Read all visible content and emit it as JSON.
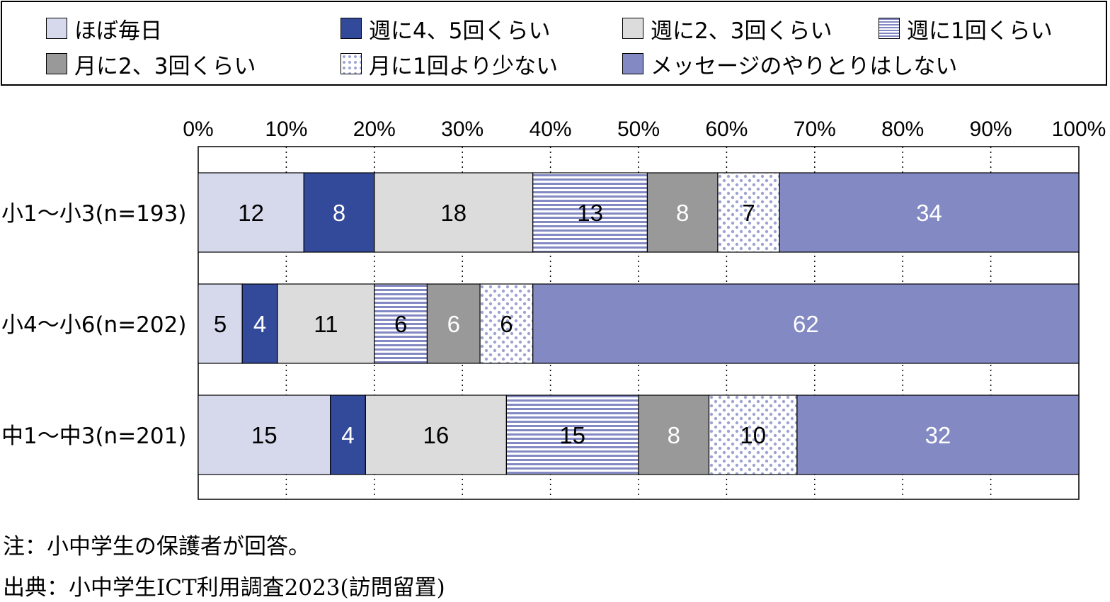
{
  "legend": [
    {
      "label": "ほぼ毎日",
      "fill": "#d6d8ec"
    },
    {
      "label": "週に4、5回くらい",
      "fill": "#33499a"
    },
    {
      "label": "週に2、3回くらい",
      "fill": "#dcdcdc"
    },
    {
      "label": "週に1回くらい",
      "fill": "stripes"
    },
    {
      "label": "月に2、3回くらい",
      "fill": "#999999"
    },
    {
      "label": "月に1回より少ない",
      "fill": "dots"
    },
    {
      "label": "メッセージのやりとりはしない",
      "fill": "#8389c2"
    }
  ],
  "colors": {
    "daily": "#d6d8ec",
    "weekly_4_5": "#33499a",
    "weekly_2_3": "#dcdcdc",
    "stripe_base": "#ffffff",
    "stripe_line": "#8389c2",
    "monthly_2_3": "#999999",
    "dot_base": "#ffffff",
    "dot": "#9da3d2",
    "none": "#8389c2"
  },
  "chart_data": {
    "type": "bar",
    "orientation": "horizontal",
    "stacked": true,
    "xlim": [
      0,
      100
    ],
    "x_ticks": [
      "0%",
      "10%",
      "20%",
      "30%",
      "40%",
      "50%",
      "60%",
      "70%",
      "80%",
      "90%",
      "100%"
    ],
    "grid": "vertical-dotted",
    "categories": [
      "小1～小3(n=193)",
      "小4～小6(n=202)",
      "中1～中3(n=201)"
    ],
    "series": [
      {
        "name": "ほぼ毎日",
        "values": [
          12,
          5,
          15
        ]
      },
      {
        "name": "週に4、5回くらい",
        "values": [
          8,
          4,
          4
        ]
      },
      {
        "name": "週に2、3回くらい",
        "values": [
          18,
          11,
          16
        ]
      },
      {
        "name": "週に1回くらい",
        "values": [
          13,
          6,
          15
        ]
      },
      {
        "name": "月に2、3回くらい",
        "values": [
          8,
          6,
          8
        ]
      },
      {
        "name": "月に1回より少ない",
        "values": [
          7,
          6,
          10
        ]
      },
      {
        "name": "メッセージのやりとりはしない",
        "values": [
          34,
          62,
          32
        ]
      }
    ]
  },
  "notes": {
    "note": "注：小中学生の保護者が回答。",
    "source": "出典：小中学生ICT利用調査2023(訪問留置)"
  }
}
